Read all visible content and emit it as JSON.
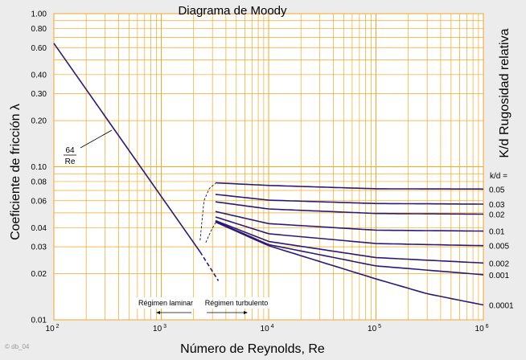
{
  "chart_data": {
    "type": "line",
    "title": "Diagrama de Moody",
    "xlabel": "Número de Reynolds, Re",
    "ylabel": "Coeficiente de fricción λ",
    "right_label": "K/d Rugosidad relativa",
    "x_scale": "log",
    "y_scale": "log",
    "xlim": [
      100,
      1000000
    ],
    "ylim": [
      0.01,
      1.0
    ],
    "grid": true,
    "x_ticks": [
      {
        "value": 100,
        "base": "10",
        "exp": "2"
      },
      {
        "value": 1000,
        "base": "10",
        "exp": "3"
      },
      {
        "value": 10000,
        "base": "10",
        "exp": "4"
      },
      {
        "value": 100000,
        "base": "10",
        "exp": "5"
      },
      {
        "value": 1000000,
        "base": "10",
        "exp": "6"
      }
    ],
    "y_ticks": [
      {
        "value": 1.0,
        "label": "1.00"
      },
      {
        "value": 0.8,
        "label": "0.80"
      },
      {
        "value": 0.6,
        "label": "0.60"
      },
      {
        "value": 0.4,
        "label": "0.40"
      },
      {
        "value": 0.3,
        "label": "0.30"
      },
      {
        "value": 0.2,
        "label": "0.20"
      },
      {
        "value": 0.1,
        "label": "0.10"
      },
      {
        "value": 0.08,
        "label": "0.08"
      },
      {
        "value": 0.06,
        "label": "0.06"
      },
      {
        "value": 0.04,
        "label": "0.04"
      },
      {
        "value": 0.03,
        "label": "0.03"
      },
      {
        "value": 0.02,
        "label": "0.02"
      },
      {
        "value": 0.01,
        "label": "0.01"
      }
    ],
    "laminar": {
      "label_num": "64",
      "label_den": "Re",
      "x": [
        100,
        2300
      ],
      "y": [
        0.64,
        0.0278
      ]
    },
    "transition_dashed": {
      "x": [
        2300,
        3400
      ],
      "y": [
        0.0278,
        0.018
      ]
    },
    "transition_upper_dashed": {
      "x": [
        2300,
        2500,
        2800,
        3200
      ],
      "y": [
        0.033,
        0.06,
        0.072,
        0.078
      ]
    },
    "transition_lower_dashed": {
      "x": [
        2600,
        2900,
        3200
      ],
      "y": [
        0.032,
        0.038,
        0.043
      ]
    },
    "roughness_header": "k/d =",
    "series": [
      {
        "name": "0.05",
        "x": [
          3200,
          10000,
          100000,
          1000000
        ],
        "y": [
          0.0785,
          0.0755,
          0.0718,
          0.0715
        ]
      },
      {
        "name": "0.03",
        "x": [
          3200,
          10000,
          100000,
          1000000
        ],
        "y": [
          0.066,
          0.0605,
          0.0575,
          0.057
        ]
      },
      {
        "name": "0.02",
        "x": [
          3200,
          10000,
          100000,
          1000000
        ],
        "y": [
          0.059,
          0.053,
          0.0495,
          0.049
        ]
      },
      {
        "name": "0.01",
        "x": [
          3200,
          10000,
          100000,
          1000000
        ],
        "y": [
          0.051,
          0.0425,
          0.0385,
          0.038
        ]
      },
      {
        "name": "0.005",
        "x": [
          3200,
          10000,
          100000,
          1000000
        ],
        "y": [
          0.047,
          0.0365,
          0.0315,
          0.0305
        ]
      },
      {
        "name": "0.002",
        "x": [
          3200,
          10000,
          100000,
          1000000
        ],
        "y": [
          0.0445,
          0.0325,
          0.0255,
          0.0235
        ]
      },
      {
        "name": "0.001",
        "x": [
          3200,
          10000,
          100000,
          1000000
        ],
        "y": [
          0.044,
          0.031,
          0.0225,
          0.0197
        ]
      },
      {
        "name": "0.0001",
        "x": [
          3200,
          10000,
          100000,
          300000,
          1000000
        ],
        "y": [
          0.0435,
          0.0305,
          0.0185,
          0.0148,
          0.0125
        ]
      }
    ],
    "regimes": {
      "laminar": "Régimen laminar",
      "turbulent": "Régimen turbulento"
    }
  },
  "watermark": "© db_04",
  "colors": {
    "grid": "#f5a623",
    "curve": "#2a1a78",
    "plot_bg": "#ffffff",
    "page_bg": "#ececec"
  }
}
